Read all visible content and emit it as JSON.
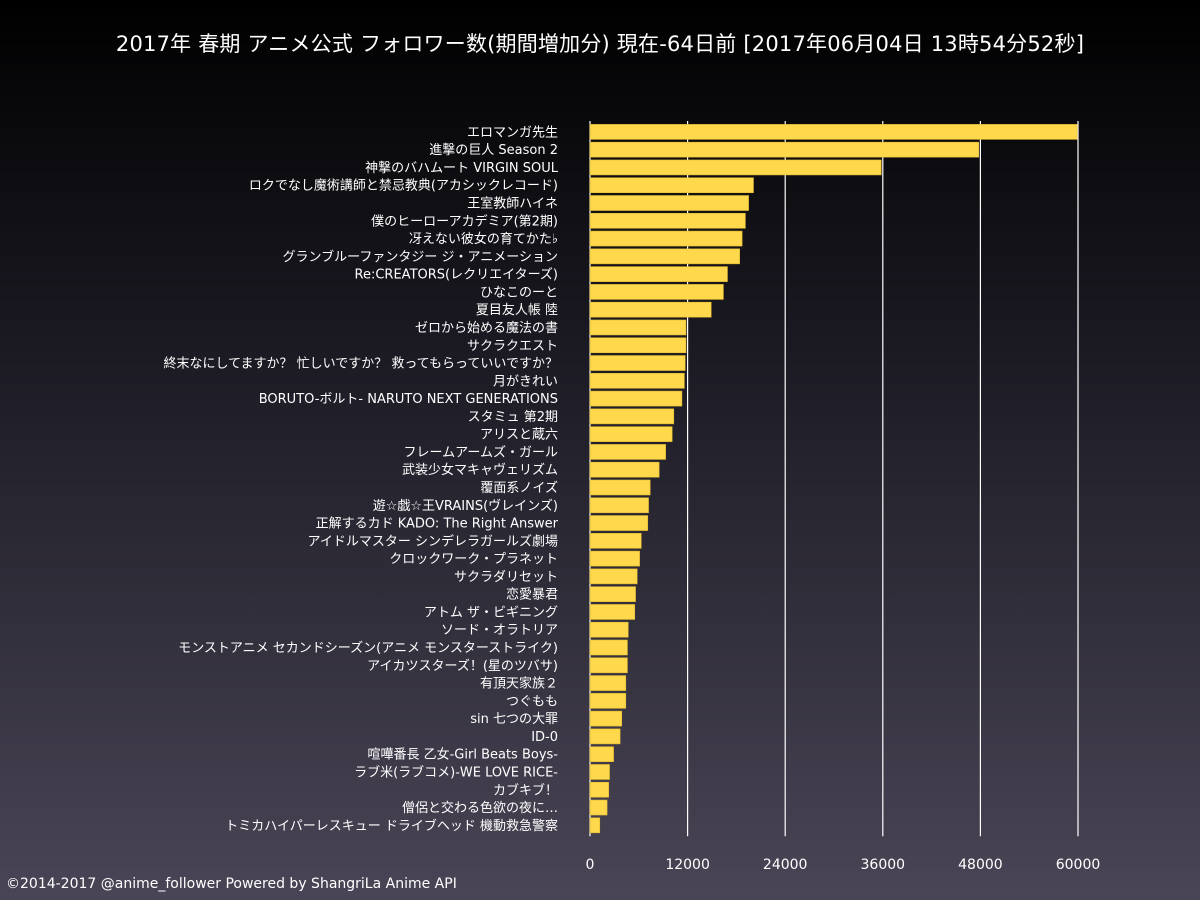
{
  "chart_data": {
    "type": "bar",
    "orientation": "horizontal",
    "title": "2017年 春期 アニメ公式 フォロワー数(期間増加分) 現在-64日前 [2017年06月04日 13時54分52秒]",
    "xlabel": "",
    "ylabel": "",
    "xlim": [
      0,
      60000
    ],
    "xticks": [
      0,
      12000,
      24000,
      36000,
      48000,
      60000
    ],
    "grid": true,
    "bar_color": "#ffd84c",
    "categories": [
      "エロマンガ先生",
      "進撃の巨人 Season 2",
      "神撃のバハムート VIRGIN SOUL",
      "ロクでなし魔術講師と禁忌教典(アカシックレコード)",
      "王室教師ハイネ",
      "僕のヒーローアカデミア(第2期)",
      "冴えない彼女の育てかた♭",
      "グランブルーファンタジー ジ・アニメーション",
      "Re:CREATORS(レクリエイターズ)",
      "ひなこのーと",
      "夏目友人帳 陸",
      "ゼロから始める魔法の書",
      "サクラクエスト",
      "終末なにしてますか？ 忙しいですか？ 救ってもらっていいですか？",
      "月がきれい",
      "BORUTO-ボルト- NARUTO NEXT GENERATIONS",
      "スタミュ 第2期",
      "アリスと蔵六",
      "フレームアームズ・ガール",
      "武装少女マキャヴェリズム",
      "覆面系ノイズ",
      "遊☆戯☆王VRAINS(ヴレインズ)",
      "正解するカド KADO: The Right Answer",
      "アイドルマスター シンデレラガールズ劇場",
      "クロックワーク・プラネット",
      "サクラダリセット",
      "恋愛暴君",
      "アトム ザ・ビギニング",
      "ソード・オラトリア",
      "モンストアニメ セカンドシーズン(アニメ モンスターストライク)",
      "アイカツスターズ！(星のツバサ)",
      "有頂天家族２",
      "つぐもも",
      "sin 七つの大罪",
      "ID-0",
      "喧嘩番長 乙女-Girl Beats Boys-",
      "ラブ米(ラブコメ)-WE LOVE RICE-",
      "カブキブ！",
      "僧侶と交わる色欲の夜に…",
      "トミカハイパーレスキュー ドライブヘッド 機動救急警察"
    ],
    "values": [
      59900,
      47800,
      35800,
      20100,
      19500,
      19100,
      18700,
      18400,
      16900,
      16400,
      14900,
      11800,
      11800,
      11700,
      11600,
      11300,
      10300,
      10100,
      9300,
      8500,
      7400,
      7200,
      7100,
      6300,
      6100,
      5800,
      5600,
      5500,
      4700,
      4600,
      4600,
      4400,
      4400,
      3900,
      3700,
      2900,
      2400,
      2300,
      2100,
      1200
    ]
  },
  "footer": {
    "credit": "©2014-2017 @anime_follower Powered by ShangriLa Anime API"
  }
}
